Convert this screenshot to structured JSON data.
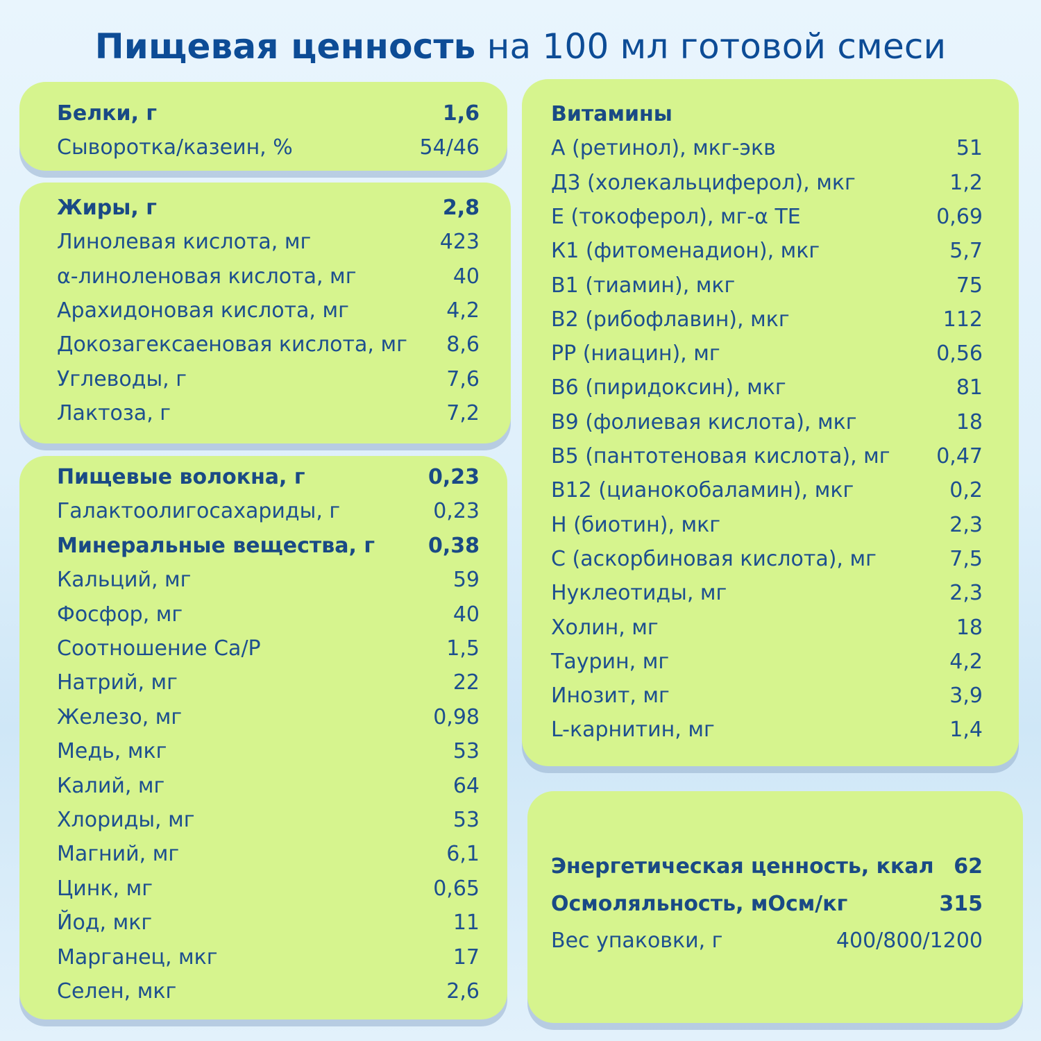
{
  "title": {
    "bold": "Пищевая ценность",
    "rest": " на 100 мл готовой смеси"
  },
  "proteins": {
    "rows": [
      {
        "label": "Белки, г",
        "value": "1,6",
        "bold": true
      },
      {
        "label": "Сыворотка/казеин, %",
        "value": "54/46",
        "bold": false
      }
    ]
  },
  "fats": {
    "rows": [
      {
        "label": "Жиры, г",
        "value": "2,8",
        "bold": true
      },
      {
        "label": "Линолевая кислота, мг",
        "value": "423",
        "bold": false
      },
      {
        "label": "α-линоленовая кислота, мг",
        "value": "40",
        "bold": false
      },
      {
        "label": "Арахидоновая кислота, мг",
        "value": "4,2",
        "bold": false
      },
      {
        "label": "Докозагексаеновая кислота, мг",
        "value": "8,6",
        "bold": false
      },
      {
        "label": "Углеводы, г",
        "value": "7,6",
        "bold": false
      },
      {
        "label": "Лактоза, г",
        "value": "7,2",
        "bold": false
      }
    ]
  },
  "fibers_minerals": {
    "rows": [
      {
        "label": "Пищевые волокна, г",
        "value": "0,23",
        "bold": true
      },
      {
        "label": "Галактоолигосахариды, г",
        "value": "0,23",
        "bold": false
      },
      {
        "label": "Минеральные вещества, г",
        "value": "0,38",
        "bold": true
      },
      {
        "label": "Кальций, мг",
        "value": "59",
        "bold": false
      },
      {
        "label": "Фосфор, мг",
        "value": "40",
        "bold": false
      },
      {
        "label": "Соотношение Ca/P",
        "value": "1,5",
        "bold": false
      },
      {
        "label": "Натрий, мг",
        "value": "22",
        "bold": false
      },
      {
        "label": "Железо, мг",
        "value": "0,98",
        "bold": false
      },
      {
        "label": "Медь, мкг",
        "value": "53",
        "bold": false
      },
      {
        "label": "Калий, мг",
        "value": "64",
        "bold": false
      },
      {
        "label": "Хлориды, мг",
        "value": "53",
        "bold": false
      },
      {
        "label": "Магний, мг",
        "value": "6,1",
        "bold": false
      },
      {
        "label": "Цинк, мг",
        "value": "0,65",
        "bold": false
      },
      {
        "label": "Йод, мкг",
        "value": "11",
        "bold": false
      },
      {
        "label": "Марганец, мкг",
        "value": "17",
        "bold": false
      },
      {
        "label": "Селен, мкг",
        "value": "2,6",
        "bold": false
      }
    ]
  },
  "vitamins": {
    "rows": [
      {
        "label": "Витамины",
        "value": "",
        "bold": true
      },
      {
        "label": "А (ретинол), мкг-экв",
        "value": "51",
        "bold": false
      },
      {
        "label": "Д3 (холекальциферол), мкг",
        "value": "1,2",
        "bold": false
      },
      {
        "label": "Е (токоферол), мг-α ТЕ",
        "value": "0,69",
        "bold": false
      },
      {
        "label": "К1 (фитоменадион), мкг",
        "value": "5,7",
        "bold": false
      },
      {
        "label": "В1 (тиамин), мкг",
        "value": "75",
        "bold": false
      },
      {
        "label": "В2 (рибофлавин), мкг",
        "value": "112",
        "bold": false
      },
      {
        "label": "РР (ниацин), мг",
        "value": "0,56",
        "bold": false
      },
      {
        "label": "В6 (пиридоксин), мкг",
        "value": "81",
        "bold": false
      },
      {
        "label": "В9 (фолиевая кислота), мкг",
        "value": "18",
        "bold": false
      },
      {
        "label": "В5 (пантотеновая кислота), мг",
        "value": "0,47",
        "bold": false
      },
      {
        "label": "В12 (цианокобаламин), мкг",
        "value": "0,2",
        "bold": false
      },
      {
        "label": "Н (биотин), мкг",
        "value": "2,3",
        "bold": false
      },
      {
        "label": "С (аскорбиновая кислота), мг",
        "value": "7,5",
        "bold": false
      },
      {
        "label": "Нуклеотиды, мг",
        "value": "2,3",
        "bold": false
      },
      {
        "label": "Холин, мг",
        "value": "18",
        "bold": false
      },
      {
        "label": "Таурин, мг",
        "value": "4,2",
        "bold": false
      },
      {
        "label": "Инозит, мг",
        "value": "3,9",
        "bold": false
      },
      {
        "label": "L-карнитин, мг",
        "value": "1,4",
        "bold": false
      }
    ]
  },
  "energy": {
    "rows": [
      {
        "label": "Энергетическая ценность, ккал",
        "value": "62",
        "bold": true
      },
      {
        "label": "Осмоляльность, мОсм/кг",
        "value": "315",
        "bold": true
      },
      {
        "label": "Вес упаковки, г",
        "value": "400/800/1200",
        "bold": false
      }
    ]
  }
}
